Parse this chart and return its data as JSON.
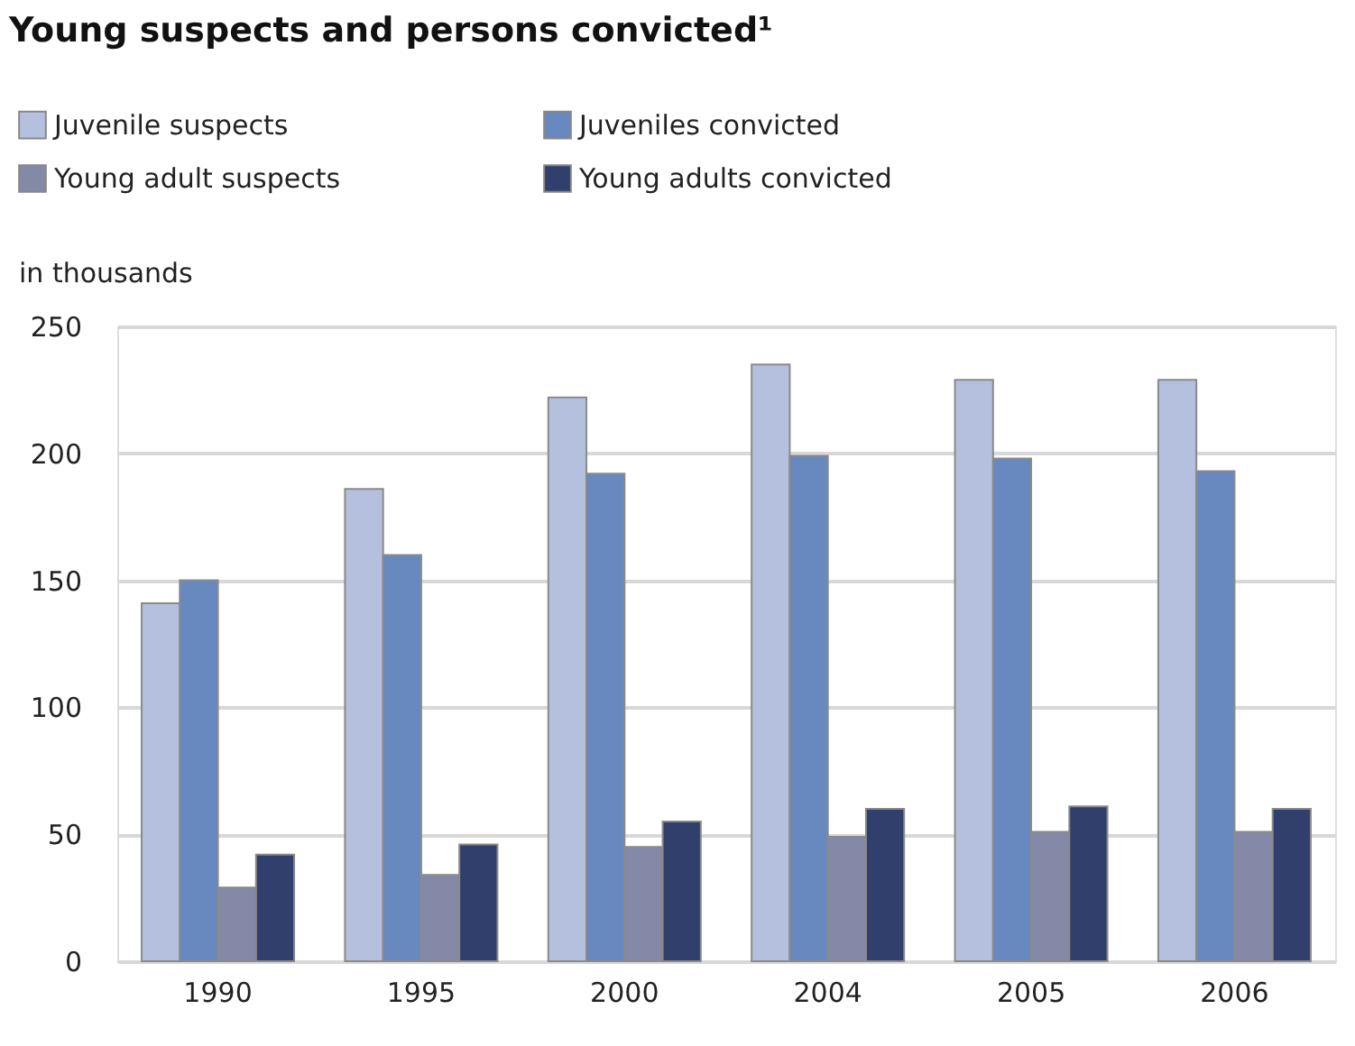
{
  "chart_data": {
    "type": "bar",
    "title": "Young suspects and persons convicted¹",
    "ylabel": "in thousands",
    "categories": [
      "1990",
      "1995",
      "2000",
      "2004",
      "2005",
      "2006"
    ],
    "series": [
      {
        "name": "Juvenile suspects",
        "color": "#b4c0de",
        "values": [
          141,
          186,
          222,
          235,
          229,
          229
        ]
      },
      {
        "name": "Juveniles convicted",
        "color": "#6789c0",
        "values": [
          150,
          160,
          192,
          199,
          198,
          193
        ]
      },
      {
        "name": "Young adult suspects",
        "color": "#8589a8",
        "values": [
          29,
          34,
          45,
          49,
          51,
          51
        ]
      },
      {
        "name": "Young adults convicted",
        "color": "#303f6b",
        "values": [
          42,
          46,
          55,
          60,
          61,
          60
        ]
      }
    ],
    "ylim": [
      0,
      250
    ],
    "yticks": [
      0,
      50,
      100,
      150,
      200,
      250
    ],
    "grid": "y",
    "legend": "top left"
  }
}
